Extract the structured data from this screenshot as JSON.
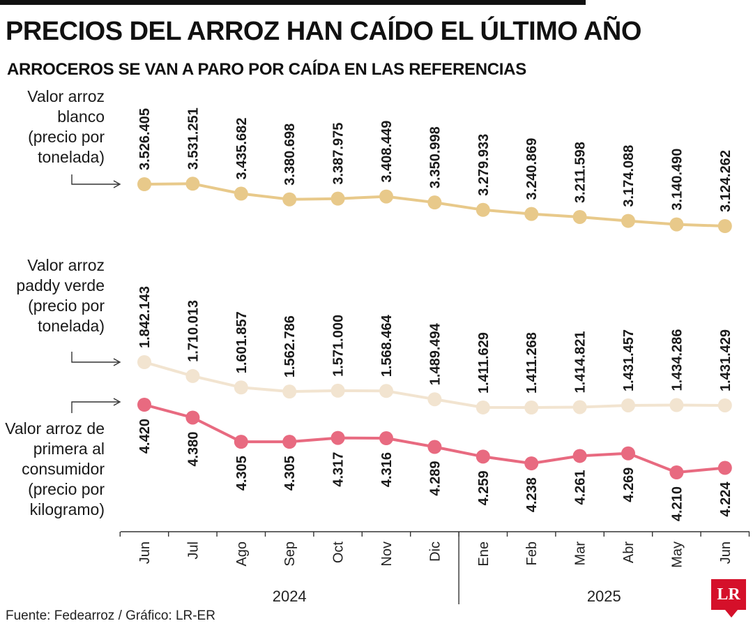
{
  "header": {
    "title": "PRECIOS DEL ARROZ HAN CAÍDO EL ÚLTIMO AÑO",
    "subtitle": "ARROCEROS SE VAN A PARO POR CAÍDA EN LAS REFERENCIAS"
  },
  "footer": {
    "source": "Fuente: Fedearroz / Gráfico: LR-ER",
    "logo_text": "LR"
  },
  "colors": {
    "blanco": "#e8c98a",
    "paddy": "#f2e4d0",
    "consumidor": "#e86a80",
    "axis": "#333333",
    "logo": "#d5102a"
  },
  "chart_data": {
    "type": "line",
    "categories": [
      "Jun",
      "Jul",
      "Ago",
      "Sep",
      "Oct",
      "Nov",
      "Dic",
      "Ene",
      "Feb",
      "Mar",
      "Abr",
      "May",
      "Jun"
    ],
    "year_groups": [
      {
        "label": "2024",
        "from": 0,
        "to": 6
      },
      {
        "label": "2025",
        "from": 7,
        "to": 12
      }
    ],
    "series": [
      {
        "key": "blanco",
        "name_lines": [
          "Valor arroz",
          "blanco",
          "(precio por",
          "tonelada)"
        ],
        "values": [
          3526405,
          3531251,
          3435682,
          3380698,
          3387975,
          3408449,
          3350998,
          3279933,
          3240869,
          3211598,
          3174088,
          3140490,
          3124262
        ],
        "labels": [
          "3.526.405",
          "3.531.251",
          "3.435.682",
          "3.380.698",
          "3.387.975",
          "3.408.449",
          "3.350.998",
          "3.279.933",
          "3.240.869",
          "3.211.598",
          "3.174.088",
          "3.140.490",
          "3.124.262"
        ]
      },
      {
        "key": "paddy",
        "name_lines": [
          "Valor arroz",
          "paddy verde",
          "(precio por",
          "tonelada)"
        ],
        "values": [
          1842143,
          1710013,
          1601857,
          1562786,
          1571000,
          1568464,
          1489494,
          1411629,
          1411268,
          1414821,
          1431457,
          1434286,
          1431429
        ],
        "labels": [
          "1.842.143",
          "1.710.013",
          "1.601.857",
          "1.562.786",
          "1.571.000",
          "1.568.464",
          "1.489.494",
          "1.411.629",
          "1.411.268",
          "1.414.821",
          "1.431.457",
          "1.434.286",
          "1.431.429"
        ]
      },
      {
        "key": "consumidor",
        "name_lines": [
          "Valor arroz de",
          "primera al",
          "consumidor",
          "(precio por",
          "kilogramo)"
        ],
        "values": [
          4420,
          4380,
          4305,
          4305,
          4317,
          4316,
          4289,
          4259,
          4238,
          4261,
          4269,
          4210,
          4224
        ],
        "labels": [
          "4.420",
          "4.380",
          "4.305",
          "4.305",
          "4.317",
          "4.316",
          "4.289",
          "4.259",
          "4.238",
          "4.261",
          "4.269",
          "4.210",
          "4.224"
        ]
      }
    ]
  }
}
